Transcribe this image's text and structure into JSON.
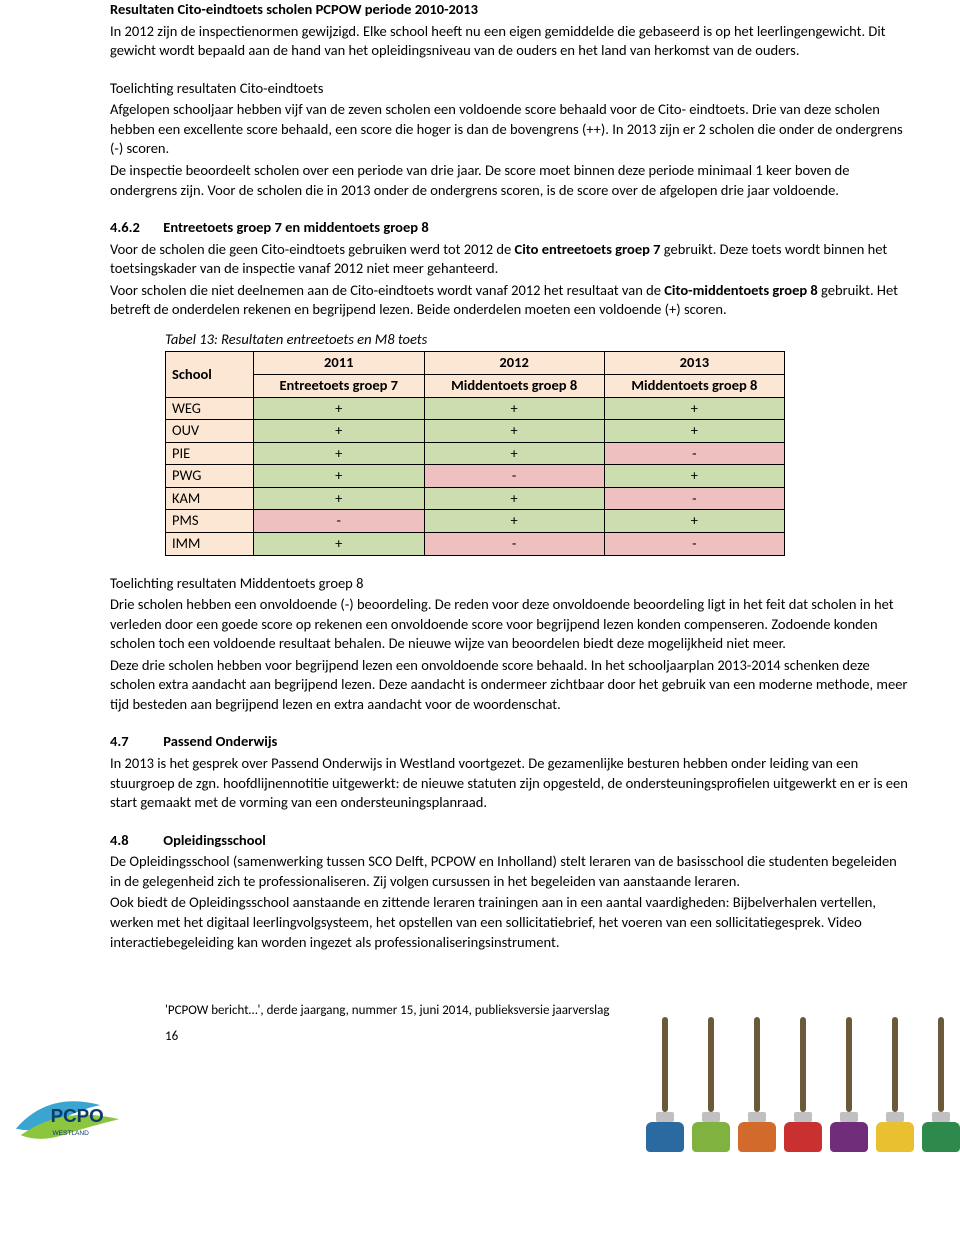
{
  "title": "Resultaten Cito-eindtoets scholen PCPOW periode 2010-2013",
  "para1": "In 2012 zijn de inspectienormen gewijzigd. Elke school heeft nu een eigen gemiddelde die gebaseerd is op het leerlingengewicht. Dit gewicht wordt bepaald aan de hand van het opleidingsniveau van de ouders en het land van herkomst van de ouders.",
  "para2a": "Toelichting resultaten Cito-eindtoets",
  "para2b": "Afgelopen schooljaar hebben vijf van de zeven scholen een voldoende score behaald voor de Cito- eindtoets. Drie van deze scholen hebben een excellente score behaald, een score die hoger is dan de bovengrens (++). In 2013 zijn er 2 scholen die onder de ondergrens (-) scoren.",
  "para2c": "De inspectie beoordeelt scholen over een periode van drie jaar. De score moet binnen deze periode minimaal 1 keer boven de ondergrens zijn. Voor de scholen die in 2013 onder de ondergrens scoren, is de score over de afgelopen drie jaar voldoende.",
  "sec462_num": "4.6.2",
  "sec462_title": "Entreetoets groep 7 en middentoets groep 8",
  "sec462_p1a": "Voor de scholen die geen Cito-eindtoets gebruiken werd tot 2012 de ",
  "sec462_p1b": "Cito entreetoets groep 7",
  "sec462_p1c": " gebruikt. Deze toets wordt binnen het toetsingskader van de inspectie vanaf 2012 niet meer gehanteerd.",
  "sec462_p2a": "Voor scholen die niet deelnemen aan de Cito-eindtoets wordt vanaf 2012 het resultaat van de ",
  "sec462_p2b": "Cito-middentoets groep 8",
  "sec462_p2c": " gebruikt. Het betreft de onderdelen rekenen en begrijpend lezen. Beide onderdelen moeten een voldoende (+) scoren.",
  "table_caption": "Tabel 13: Resultaten entreetoets en M8 toets",
  "table": {
    "header_colors": {
      "bg": "#fce7d4"
    },
    "plus_color": "#ccdeb0",
    "minus_color": "#eec0c0",
    "columns": [
      {
        "label": "School"
      },
      {
        "year": "2011",
        "sub": "Entreetoets groep 7"
      },
      {
        "year": "2012",
        "sub": "Middentoets groep 8"
      },
      {
        "year": "2013",
        "sub": "Middentoets groep 8"
      }
    ],
    "rows": [
      {
        "school": "WEG",
        "v": [
          "+",
          "+",
          "+"
        ]
      },
      {
        "school": "OUV",
        "v": [
          "+",
          "+",
          "+"
        ]
      },
      {
        "school": "PIE",
        "v": [
          "+",
          "+",
          "-"
        ]
      },
      {
        "school": "PWG",
        "v": [
          "+",
          "-",
          "+"
        ]
      },
      {
        "school": "KAM",
        "v": [
          "+",
          "+",
          "-"
        ]
      },
      {
        "school": "PMS",
        "v": [
          "-",
          "+",
          "+"
        ]
      },
      {
        "school": "IMM",
        "v": [
          "+",
          "-",
          "-"
        ]
      }
    ]
  },
  "para3a": "Toelichting resultaten Middentoets groep 8",
  "para3b": "Drie scholen hebben een onvoldoende (-) beoordeling. De reden voor deze onvoldoende beoordeling ligt in het feit dat scholen in het verleden door een goede score op rekenen een onvoldoende score voor begrijpend lezen konden compenseren. Zodoende konden scholen toch een voldoende resultaat behalen. De nieuwe wijze van beoordelen biedt deze mogelijkheid niet meer.",
  "para3c": "Deze drie scholen hebben voor begrijpend lezen een onvoldoende score behaald. In het schooljaarplan 2013-2014 schenken deze scholen extra aandacht aan begrijpend lezen. Deze aandacht  is ondermeer zichtbaar door het gebruik van een moderne methode, meer tijd besteden aan begrijpend lezen en extra aandacht voor de woordenschat.",
  "sec47_num": "4.7",
  "sec47_title": "Passend Onderwijs",
  "sec47_p": "In 2013 is het gesprek over Passend Onderwijs in Westland voortgezet. De gezamenlijke besturen hebben onder leiding van een stuurgroep de zgn. hoofdlijnennotitie uitgewerkt: de nieuwe statuten zijn opgesteld, de ondersteuningsprofielen uitgewerkt en er is een start gemaakt met de vorming van een ondersteuningsplanraad.",
  "sec48_num": "4.8",
  "sec48_title": "Opleidingsschool",
  "sec48_p1": "De Opleidingsschool (samenwerking tussen SCO Delft, PCPOW en Inholland) stelt leraren van de basisschool die studenten begeleiden in de gelegenheid zich te professionaliseren. Zij volgen cursussen in het begeleiden van aanstaande leraren.",
  "sec48_p2": "Ook biedt de Opleidingsschool aanstaande en zittende leraren trainingen aan in een aantal vaardigheden: Bijbelverhalen vertellen, werken met het digitaal leerlingvolgsysteem, het opstellen van een sollicitatiebrief, het voeren van een sollicitatiegesprek. Video interactiebegeleiding kan worden ingezet als professionaliseringsinstrument.",
  "footer_line": "'PCPOW bericht…', derde jaargang, nummer 15, juni 2014, publieksversie jaarverslag",
  "page_number": "16",
  "logo": {
    "text_top": "PCPO",
    "text_bottom": "WESTLAND",
    "colors": {
      "swoosh1": "#3aa5d1",
      "swoosh2": "#8cc63f",
      "text": "#0c3a6a"
    }
  },
  "brush_colors": [
    "#2a6aa0",
    "#7fb23f",
    "#d16a2a",
    "#c93030",
    "#6f2d7a",
    "#e8c030",
    "#2e8a4c"
  ]
}
